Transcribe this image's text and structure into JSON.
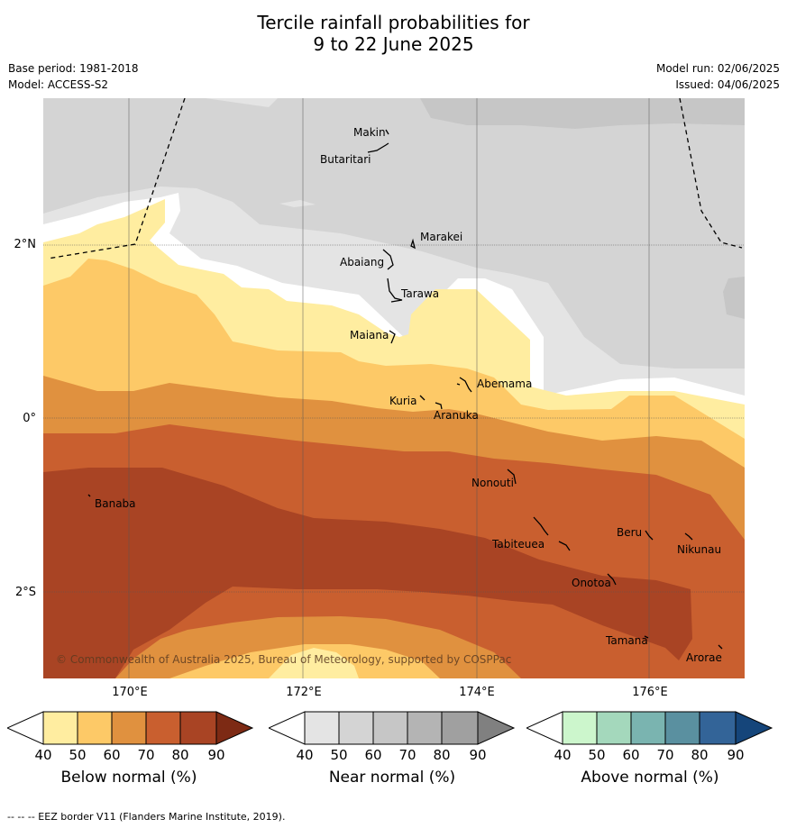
{
  "title_line1": "Tercile rainfall probabilities for",
  "title_line2": "9 to 22 June 2025",
  "base_period": "Base period: 1981-2018",
  "model": "Model: ACCESS-S2",
  "model_run": "Model run: 02/06/2025",
  "issued": "Issued: 04/06/2025",
  "copyright": "© Commonwealth of Australia 2025, Bureau of Meteorology, supported by COSPPac",
  "footnote": "--  --  -- EEZ border V11 (Flanders Marine Institute, 2019).",
  "lat_labels": [
    "2°N",
    "0°",
    "2°S"
  ],
  "lon_labels": [
    "170°E",
    "172°E",
    "174°E",
    "176°E"
  ],
  "islands": [
    "Makin",
    "Butaritari",
    "Marakei",
    "Abaiang",
    "Tarawa",
    "Maiana",
    "Abemama",
    "Kuria",
    "Aranuka",
    "Nonouti",
    "Banaba",
    "Beru",
    "Tabiteuea",
    "Nikunau",
    "Onotoa",
    "Tamana",
    "Arorae"
  ],
  "colorbars": [
    {
      "label": "Below normal (%)",
      "colors": [
        "#ffeda0",
        "#fdc967",
        "#e0913f",
        "#c95f2f",
        "#a94424",
        "#7d2a14"
      ]
    },
    {
      "label": "Near normal (%)",
      "colors": [
        "#e4e4e4",
        "#d4d4d4",
        "#c6c6c6",
        "#b4b4b4",
        "#a0a0a0",
        "#808080"
      ]
    },
    {
      "label": "Above normal (%)",
      "colors": [
        "#ccf6cc",
        "#a4d8bc",
        "#7ab4b0",
        "#5a90a0",
        "#336498",
        "#15457a"
      ]
    }
  ],
  "ticks": [
    "40",
    "50",
    "60",
    "70",
    "80",
    "90"
  ]
}
